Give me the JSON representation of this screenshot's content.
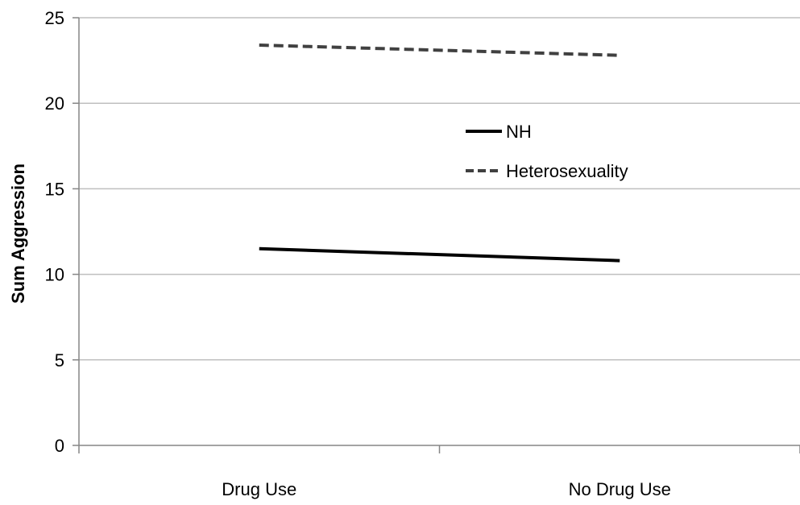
{
  "chart_data": {
    "type": "line",
    "title": "",
    "xlabel": "",
    "ylabel": "Sum Aggression",
    "categories": [
      "Drug Use",
      "No Drug Use"
    ],
    "ylim": [
      0,
      25
    ],
    "yticks": [
      0,
      5,
      10,
      15,
      20,
      25
    ],
    "grid": true,
    "legend_position": "center-right",
    "series": [
      {
        "name": "NH",
        "values": [
          11.5,
          10.8
        ],
        "style": "solid",
        "color": "#000000"
      },
      {
        "name": "Heterosexuality",
        "values": [
          23.4,
          22.8
        ],
        "style": "dashed",
        "color": "#404040"
      }
    ],
    "colors": {
      "grid": "#bfbfbf",
      "axis": "#868686"
    }
  }
}
